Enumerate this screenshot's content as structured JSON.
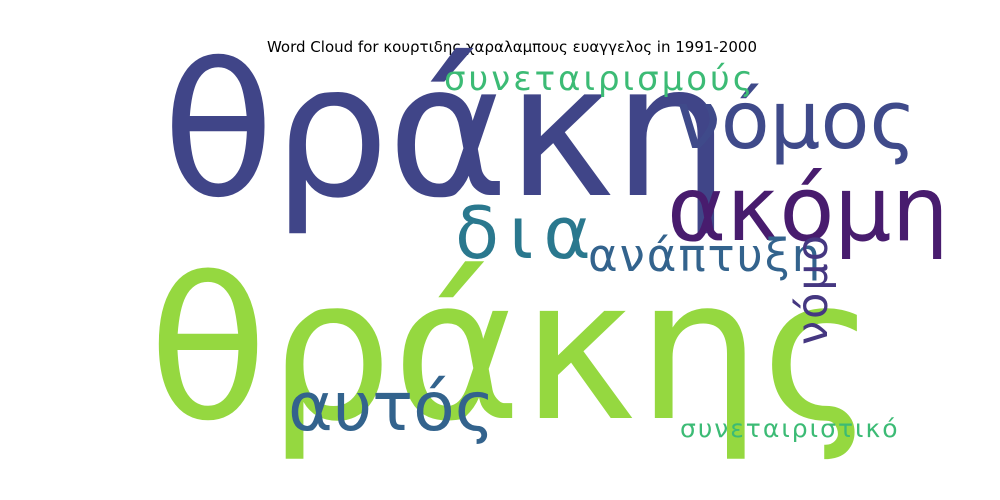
{
  "chart_data": {
    "type": "wordcloud",
    "title": "Word Cloud for κουρτιδης χαραλαμπους ευαγγελος in 1991-2000",
    "words": [
      {
        "text": "θράκης",
        "weight": 1.0,
        "color": "#95d840",
        "orientation": "horizontal"
      },
      {
        "text": "θράκη",
        "weight": 0.95,
        "color": "#404588",
        "orientation": "horizontal"
      },
      {
        "text": "ακόμη",
        "weight": 0.46,
        "color": "#481c6e",
        "orientation": "horizontal"
      },
      {
        "text": "νόμος",
        "weight": 0.42,
        "color": "#3f4a8a",
        "orientation": "horizontal"
      },
      {
        "text": "δια",
        "weight": 0.4,
        "color": "#2a788e",
        "orientation": "horizontal"
      },
      {
        "text": "αυτός",
        "weight": 0.38,
        "color": "#33638d",
        "orientation": "horizontal"
      },
      {
        "text": "ανάπτυξη",
        "weight": 0.26,
        "color": "#33638d",
        "orientation": "horizontal"
      },
      {
        "text": "νόμο",
        "weight": 0.25,
        "color": "#453781",
        "orientation": "vertical"
      },
      {
        "text": "συνεταιρισμούς",
        "weight": 0.23,
        "color": "#3cbb75",
        "orientation": "horizontal"
      },
      {
        "text": "συνεταιριστικό",
        "weight": 0.19,
        "color": "#3cbb75",
        "orientation": "horizontal"
      }
    ]
  }
}
